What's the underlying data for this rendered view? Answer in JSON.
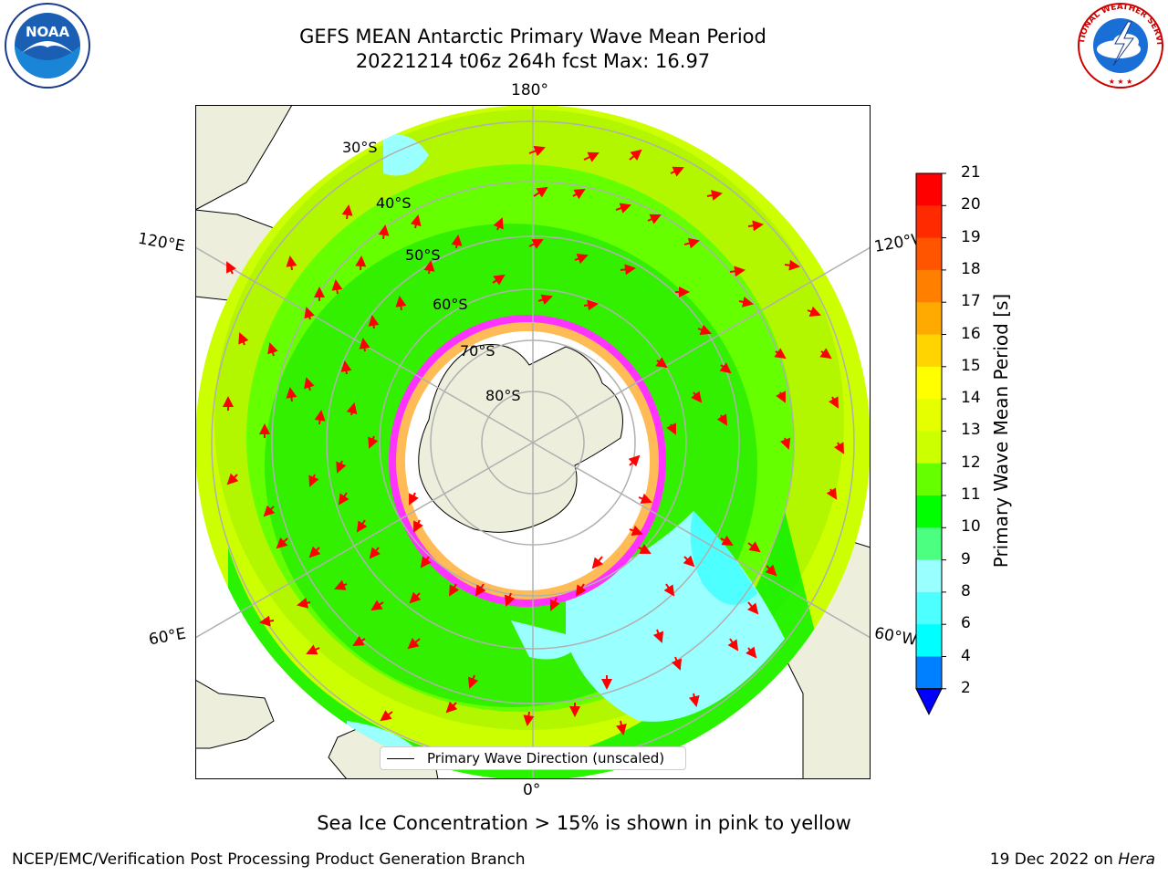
{
  "title_line1": "GEFS MEAN Antarctic Primary Wave Mean Period",
  "title_line2": "20221214 t06z 264h fcst   Max: 16.97",
  "logos": {
    "left": "noaa-logo",
    "right": "nws-logo",
    "left_text": "NOAA",
    "right_text": "NATIONAL WEATHER SERVICE"
  },
  "axis_labels": {
    "top": "180°",
    "bottom": "0°",
    "upper_left": "120°E",
    "upper_right": "120°W",
    "lower_left": "60°E",
    "lower_right": "60°W"
  },
  "lat_labels": [
    "30°S",
    "40°S",
    "50°S",
    "60°S",
    "70°S",
    "80°S"
  ],
  "colorbar": {
    "label": "Primary Wave Mean Period [s]",
    "ticks": [
      "21",
      "20",
      "19",
      "18",
      "17",
      "16",
      "15",
      "14",
      "13",
      "12",
      "11",
      "10",
      "9",
      "8",
      "6",
      "4",
      "2"
    ],
    "colors_top_to_bottom": [
      "#ff0000",
      "#ff2a00",
      "#ff5500",
      "#ff8000",
      "#ffaa00",
      "#ffd400",
      "#ffff00",
      "#e6ff00",
      "#ccff00",
      "#66ff00",
      "#00ff00",
      "#4dff80",
      "#99ffff",
      "#4dffff",
      "#00ffff",
      "#0080ff",
      "#0000ff"
    ]
  },
  "legend": {
    "text": "Primary Wave Direction (unscaled)"
  },
  "note": "Sea Ice Concentration > 15% is shown in pink to yellow",
  "footer_left": "NCEP/EMC/Verification Post Processing Product Generation Branch",
  "footer_right_date": "19 Dec 2022 on",
  "footer_right_machine": "Hera",
  "colors": {
    "land": "#eeeedd",
    "ice": "#ffffff",
    "ice_edge": "#ff33ff",
    "arrow": "#ff0000",
    "grid": "#b0b0b0"
  }
}
